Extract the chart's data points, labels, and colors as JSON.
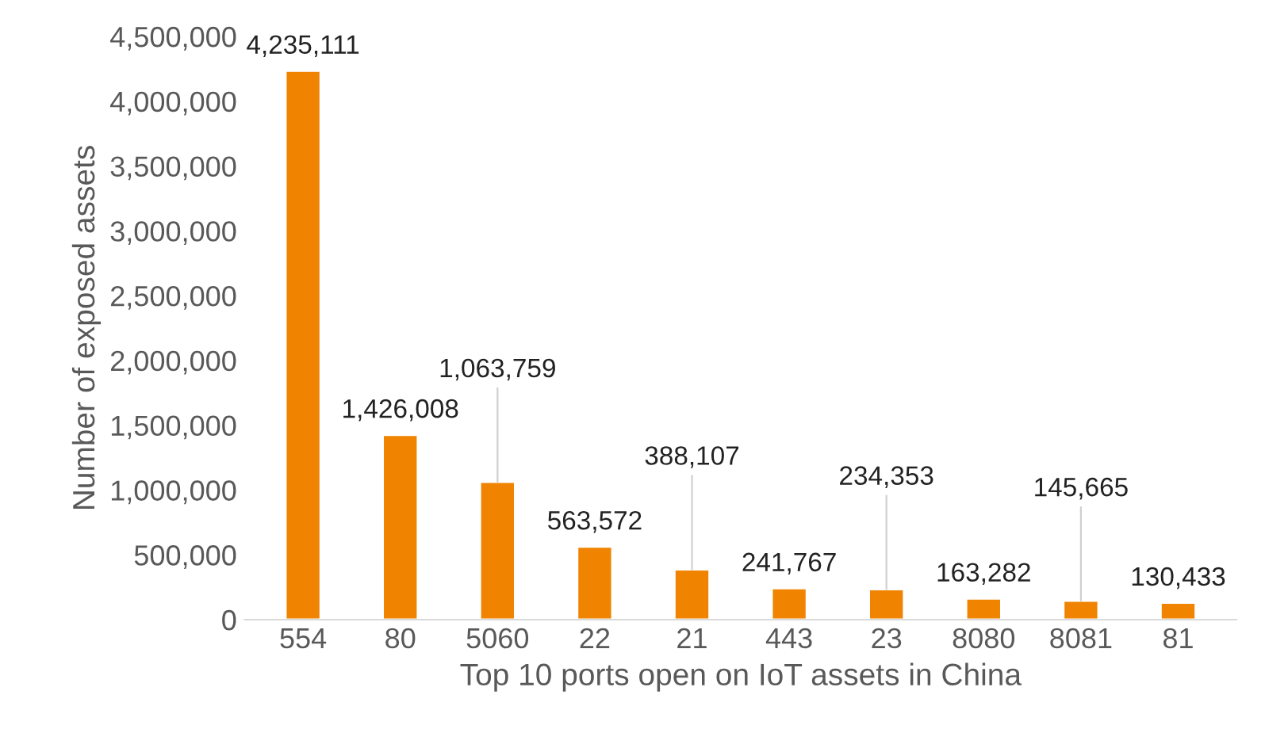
{
  "chart_data": {
    "type": "bar",
    "xlabel": "Top 10 ports open on IoT assets in China",
    "ylabel": "Number of exposed assets",
    "categories": [
      "554",
      "80",
      "5060",
      "22",
      "21",
      "443",
      "23",
      "8080",
      "8081",
      "81"
    ],
    "values": [
      4235111,
      1426008,
      1063759,
      563572,
      388107,
      241767,
      234353,
      163282,
      145665,
      130433
    ],
    "color": "#f08300",
    "ylim": [
      0,
      4500000
    ],
    "yticks": [
      {
        "value": 0,
        "label": "0"
      },
      {
        "value": 500000,
        "label": "500,000"
      },
      {
        "value": 1000000,
        "label": "1,000,000"
      },
      {
        "value": 1500000,
        "label": "1,500,000"
      },
      {
        "value": 2000000,
        "label": "2,000,000"
      },
      {
        "value": 2500000,
        "label": "2,500,000"
      },
      {
        "value": 3000000,
        "label": "3,000,000"
      },
      {
        "value": 3500000,
        "label": "3,500,000"
      },
      {
        "value": 4000000,
        "label": "4,000,000"
      },
      {
        "value": 4500000,
        "label": "4,500,000"
      }
    ],
    "grid": false,
    "value_labels": [
      "4,235,111",
      "1,426,008",
      "1,063,759",
      "563,572",
      "388,107",
      "241,767",
      "234,353",
      "163,282",
      "145,665",
      "130,433"
    ]
  }
}
